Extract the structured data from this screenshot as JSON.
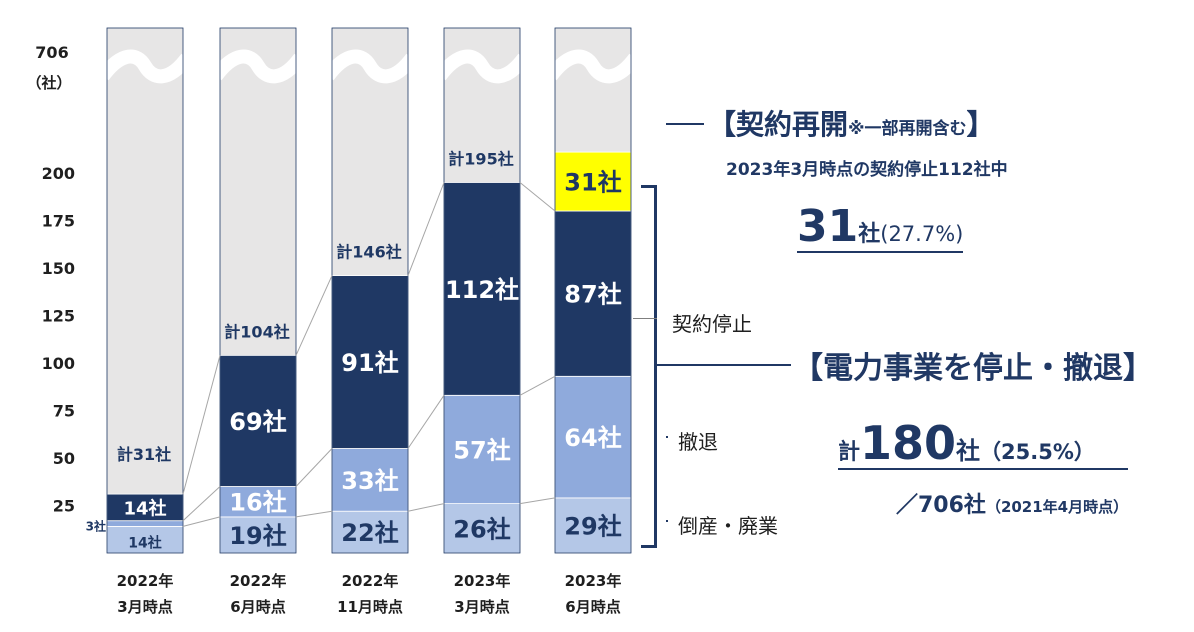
{
  "chart_data": {
    "type": "bar",
    "stacked": true,
    "categories": [
      [
        "2022年",
        "3月時点"
      ],
      [
        "2022年",
        "6月時点"
      ],
      [
        "2022年",
        "11月時点"
      ],
      [
        "2023年",
        "3月時点"
      ],
      [
        "2023年",
        "6月時点"
      ]
    ],
    "series": [
      {
        "key": "haigyou",
        "values": [
          14,
          19,
          22,
          26,
          29
        ],
        "labels": [
          "14社",
          "19社",
          "22社",
          "26社",
          "29社"
        ],
        "color": "#b4c7e7"
      },
      {
        "key": "tettai",
        "values": [
          3,
          16,
          33,
          57,
          64
        ],
        "labels": [
          "3社",
          "16社",
          "33社",
          "57社",
          "64社"
        ],
        "color": "#8faadc"
      },
      {
        "key": "teishi",
        "values": [
          14,
          69,
          91,
          112,
          87
        ],
        "labels": [
          "14社",
          "69社",
          "91社",
          "112社",
          "87社"
        ],
        "color": "#1f3864"
      },
      {
        "key": "saikai",
        "values": [
          0,
          0,
          0,
          0,
          31
        ],
        "labels": [
          "",
          "",
          "",
          "",
          "31社"
        ],
        "color": "#ffff00"
      }
    ],
    "totals": [
      "計31社",
      "計104社",
      "計146社",
      "計195社",
      ""
    ],
    "yticks": [
      "200",
      "175",
      "150",
      "125",
      "100",
      "75",
      "50",
      "25"
    ],
    "ytick_values": [
      200,
      175,
      150,
      125,
      100,
      75,
      50,
      25
    ],
    "ylim": [
      0,
      200
    ],
    "ytop_label": "706",
    "ytop_unit": "（社）",
    "background_color": "#e7e6e6",
    "axis_break": true
  },
  "annotations": {
    "saikai_title": "【契約再開",
    "saikai_note": "※一部再開含む",
    "saikai_close": "】",
    "saikai_sub": "2023年3月時点の契約停止112社中",
    "saikai_num": "31",
    "saikai_unit": "社",
    "saikai_pct": "(27.7%)",
    "teishi_label": "契約停止",
    "stop_title": "【電力事業を停止・撤退】",
    "tettai_label": "撤退",
    "total_kei": "計",
    "total_num": "180",
    "total_unit": "社",
    "total_pct": "（25.5%）",
    "base_text": "／706社",
    "base_note": "（2021年4月時点）",
    "haigyou_label": "倒産・廃業"
  }
}
